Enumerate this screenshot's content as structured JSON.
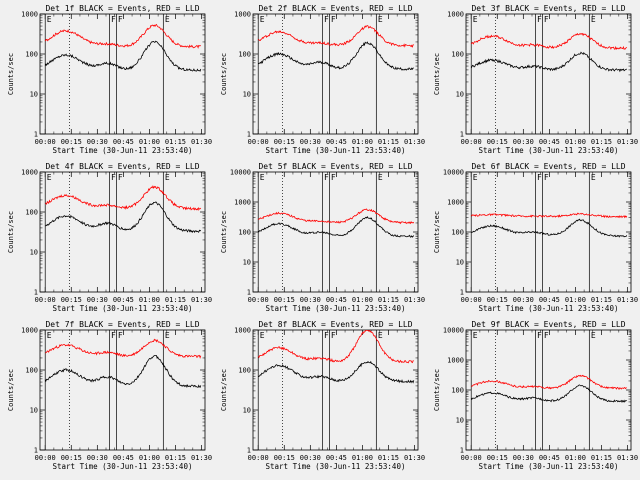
{
  "colors": {
    "events": "#000000",
    "lld": "#ff0000",
    "background": "#f0f0f0"
  },
  "shared": {
    "x_tick_labels": [
      "00:00",
      "00:15",
      "00:30",
      "00:45",
      "01:00",
      "01:15",
      "01:30"
    ],
    "x_tick_minutes": [
      0,
      15,
      30,
      45,
      60,
      75,
      90
    ],
    "xlim_minutes": [
      -3,
      92
    ],
    "xlabel": "Start Time (30-Jun-11 23:53:40)",
    "ylabel": "Counts/sec",
    "dotted_line_minute": 14,
    "markers": [
      {
        "label": "E",
        "minute": 0
      },
      {
        "label": "F",
        "minute": 37
      },
      {
        "label": "F",
        "minute": 41
      },
      {
        "label": "E",
        "minute": 68
      }
    ]
  },
  "chart_data": [
    {
      "type": "line",
      "title": "Det 1f BLACK = Events, RED = LLD",
      "ylim": [
        1,
        1000
      ],
      "y_tick_labels": [
        "1",
        "10",
        "100",
        "1000"
      ],
      "series": [
        {
          "name": "Events",
          "base": 38,
          "peak1": 95,
          "mid": 60,
          "peak2": 200,
          "end": 42
        },
        {
          "name": "LLD",
          "base": 150,
          "peak1": 380,
          "mid": 180,
          "peak2": 520,
          "end": 155
        }
      ]
    },
    {
      "type": "line",
      "title": "Det 2f BLACK = Events, RED = LLD",
      "ylim": [
        1,
        1000
      ],
      "y_tick_labels": [
        "1",
        "10",
        "100",
        "1000"
      ],
      "series": [
        {
          "name": "Events",
          "base": 40,
          "peak1": 100,
          "mid": 65,
          "peak2": 190,
          "end": 45
        },
        {
          "name": "LLD",
          "base": 160,
          "peak1": 360,
          "mid": 190,
          "peak2": 480,
          "end": 165
        }
      ]
    },
    {
      "type": "line",
      "title": "Det 3f BLACK = Events, RED = LLD",
      "ylim": [
        1,
        1000
      ],
      "y_tick_labels": [
        "1",
        "10",
        "100",
        "1000"
      ],
      "series": [
        {
          "name": "Events",
          "base": 38,
          "peak1": 70,
          "mid": 50,
          "peak2": 105,
          "end": 42
        },
        {
          "name": "LLD",
          "base": 140,
          "peak1": 280,
          "mid": 170,
          "peak2": 320,
          "end": 140
        }
      ]
    },
    {
      "type": "line",
      "title": "Det 4f BLACK = Events, RED = LLD",
      "ylim": [
        1,
        1000
      ],
      "y_tick_labels": [
        "1",
        "10",
        "100",
        "1000"
      ],
      "series": [
        {
          "name": "Events",
          "base": 32,
          "peak1": 80,
          "mid": 55,
          "peak2": 170,
          "end": 35
        },
        {
          "name": "LLD",
          "base": 120,
          "peak1": 260,
          "mid": 150,
          "peak2": 420,
          "end": 120
        }
      ]
    },
    {
      "type": "line",
      "title": "Det 5f BLACK = Events, RED = LLD",
      "ylim": [
        1,
        10000
      ],
      "y_tick_labels": [
        "1",
        "10",
        "100",
        "1000",
        "10000"
      ],
      "series": [
        {
          "name": "Events",
          "base": 70,
          "peak1": 190,
          "mid": 100,
          "peak2": 300,
          "end": 75
        },
        {
          "name": "LLD",
          "base": 200,
          "peak1": 420,
          "mid": 230,
          "peak2": 560,
          "end": 210
        }
      ]
    },
    {
      "type": "line",
      "title": "Det 6f BLACK = Events, RED = LLD",
      "ylim": [
        1,
        10000
      ],
      "y_tick_labels": [
        "1",
        "10",
        "100",
        "1000",
        "10000"
      ],
      "series": [
        {
          "name": "Events",
          "base": 75,
          "peak1": 160,
          "mid": 100,
          "peak2": 250,
          "end": 70
        },
        {
          "name": "LLD",
          "base": 330,
          "peak1": 380,
          "mid": 340,
          "peak2": 400,
          "end": 320
        }
      ]
    },
    {
      "type": "line",
      "title": "Det 7f BLACK = Events, RED = LLD",
      "ylim": [
        1,
        1000
      ],
      "y_tick_labels": [
        "1",
        "10",
        "100",
        "1000"
      ],
      "series": [
        {
          "name": "Events",
          "base": 38,
          "peak1": 100,
          "mid": 70,
          "peak2": 220,
          "end": 40
        },
        {
          "name": "LLD",
          "base": 210,
          "peak1": 420,
          "mid": 280,
          "peak2": 550,
          "end": 230
        }
      ]
    },
    {
      "type": "line",
      "title": "Det 8f BLACK = Events, RED = LLD",
      "ylim": [
        1,
        1000
      ],
      "y_tick_labels": [
        "1",
        "10",
        "100",
        "1000"
      ],
      "series": [
        {
          "name": "Events",
          "base": 50,
          "peak1": 130,
          "mid": 70,
          "peak2": 160,
          "end": 55
        },
        {
          "name": "LLD",
          "base": 150,
          "peak1": 360,
          "mid": 200,
          "peak2": 1000,
          "end": 180
        }
      ]
    },
    {
      "type": "line",
      "title": "Det 9f BLACK = Events, RED = LLD",
      "ylim": [
        1,
        10000
      ],
      "y_tick_labels": [
        "1",
        "10",
        "100",
        "1000",
        "10000"
      ],
      "series": [
        {
          "name": "Events",
          "base": 40,
          "peak1": 80,
          "mid": 55,
          "peak2": 140,
          "end": 45
        },
        {
          "name": "LLD",
          "base": 110,
          "peak1": 200,
          "mid": 130,
          "peak2": 300,
          "end": 120
        }
      ]
    }
  ]
}
